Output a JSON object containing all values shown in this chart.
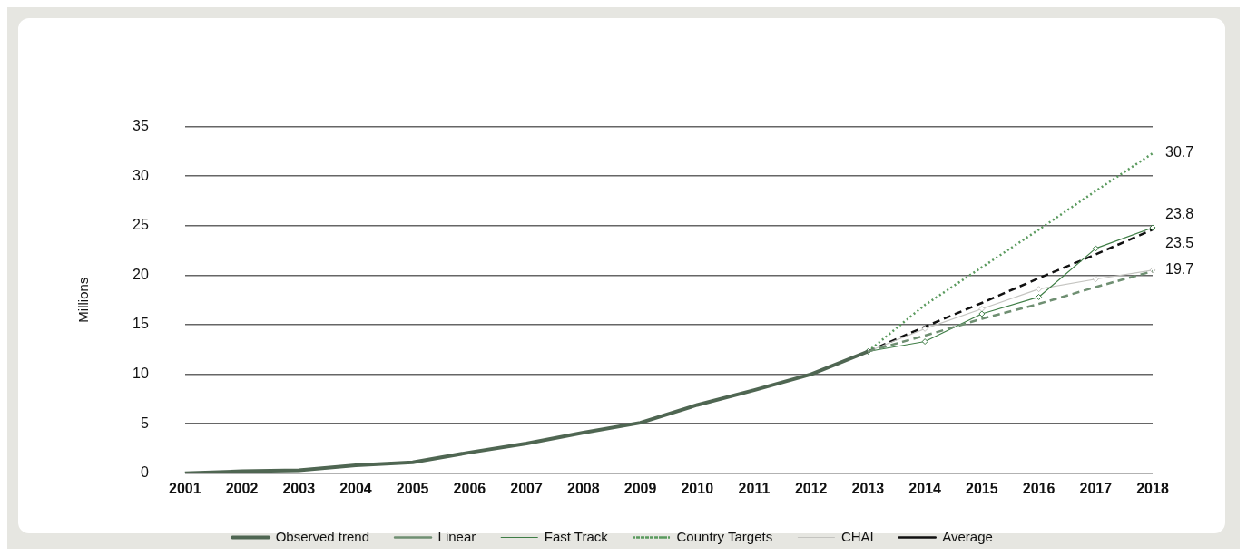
{
  "chart_data": {
    "type": "line",
    "ylabel": "Millions",
    "categories": [
      "2001",
      "2002",
      "2003",
      "2004",
      "2005",
      "2006",
      "2007",
      "2008",
      "2009",
      "2010",
      "2011",
      "2012",
      "2013",
      "2014",
      "2015",
      "2016",
      "2017",
      "2018"
    ],
    "ylim": [
      0,
      35
    ],
    "yticks": [
      0,
      5,
      10,
      15,
      20,
      25,
      30,
      35
    ],
    "grid": "y",
    "legend": "bottom",
    "series": [
      {
        "name": "Observed trend",
        "color": "#4f6652",
        "line_style": "solid",
        "marker": "none",
        "values": [
          0,
          0.2,
          0.3,
          0.8,
          1.1,
          2.1,
          3.0,
          4.1,
          5.1,
          6.9,
          8.4,
          10.0,
          12.3,
          null,
          null,
          null,
          null,
          null
        ]
      },
      {
        "name": "Linear",
        "color": "#6f8f72",
        "line_style": "dashed",
        "marker": "none",
        "values": [
          null,
          null,
          null,
          null,
          null,
          null,
          null,
          null,
          null,
          null,
          null,
          null,
          12.3,
          13.9,
          15.6,
          17.1,
          18.8,
          20.4
        ]
      },
      {
        "name": "Fast Track",
        "color": "#3e7d45",
        "line_style": "solid",
        "marker": "diamond",
        "values": [
          null,
          null,
          null,
          null,
          null,
          null,
          null,
          null,
          null,
          null,
          null,
          null,
          12.3,
          13.3,
          16.1,
          17.8,
          22.7,
          24.8
        ]
      },
      {
        "name": "Country Targets",
        "color": "#5a9a5e",
        "line_style": "dotted",
        "marker": "none",
        "values": [
          null,
          null,
          null,
          null,
          null,
          null,
          null,
          null,
          null,
          null,
          null,
          null,
          12.3,
          17.0,
          20.8,
          24.6,
          28.5,
          32.3
        ]
      },
      {
        "name": "CHAI",
        "color": "#c4c4c0",
        "line_style": "solid",
        "marker": "diamond",
        "values": [
          null,
          null,
          null,
          null,
          null,
          null,
          null,
          null,
          null,
          null,
          null,
          null,
          12.3,
          14.6,
          16.6,
          18.6,
          19.6,
          20.5
        ]
      },
      {
        "name": "Average",
        "color": "#111111",
        "line_style": "dashed",
        "marker": "none",
        "values": [
          null,
          null,
          null,
          null,
          null,
          null,
          null,
          null,
          null,
          null,
          null,
          null,
          12.3,
          14.8,
          17.2,
          19.7,
          22.1,
          24.6
        ]
      }
    ],
    "annotations": [
      {
        "text": "30.7",
        "x": "2018",
        "y": 32.3
      },
      {
        "text": "23.8",
        "x": "2018",
        "y": 24.8
      },
      {
        "text": "23.5",
        "x": "2018",
        "y": 24.6
      },
      {
        "text": "19.7",
        "x": "2018",
        "y": 20.5
      }
    ]
  }
}
